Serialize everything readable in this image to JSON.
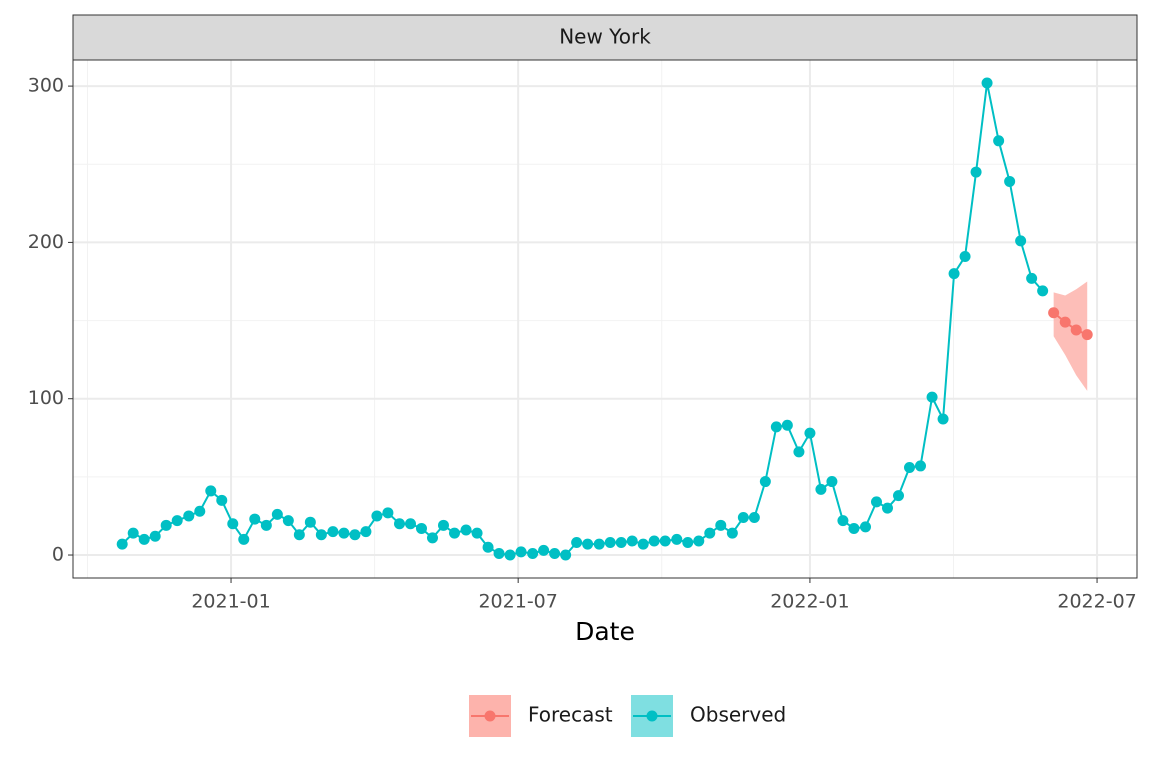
{
  "chart_data": {
    "type": "line",
    "facet": "New York",
    "xlabel": "Date",
    "xlim": [
      2020.727,
      2022.565
    ],
    "ylim": [
      -14.7,
      316.7
    ],
    "xticks": [
      {
        "value": 2021.0,
        "label": "2021-01"
      },
      {
        "value": 2021.496,
        "label": "2021-07"
      },
      {
        "value": 2022.0,
        "label": "2022-01"
      },
      {
        "value": 2022.496,
        "label": "2022-07"
      }
    ],
    "yticks": [
      0,
      100,
      200,
      300
    ],
    "grid": true,
    "legend": "bottom",
    "series": [
      {
        "name": "Forecast",
        "color": "#F8766D",
        "band_color": "#FDB3AC",
        "x": [
          2022.421,
          2022.441,
          2022.46,
          2022.479
        ],
        "values": [
          155,
          149,
          144,
          141
        ],
        "lower": [
          140,
          128,
          115,
          105
        ],
        "upper": [
          168,
          166,
          170,
          175
        ]
      },
      {
        "name": "Observed",
        "color": "#00BFC4",
        "band_color": "#7FDFE1",
        "x": [
          2020.812,
          2020.831,
          2020.85,
          2020.869,
          2020.888,
          2020.907,
          2020.927,
          2020.946,
          2020.965,
          2020.984,
          2021.003,
          2021.022,
          2021.041,
          2021.061,
          2021.08,
          2021.099,
          2021.118,
          2021.137,
          2021.156,
          2021.176,
          2021.195,
          2021.214,
          2021.233,
          2021.252,
          2021.271,
          2021.291,
          2021.31,
          2021.329,
          2021.348,
          2021.367,
          2021.386,
          2021.406,
          2021.425,
          2021.444,
          2021.463,
          2021.482,
          2021.501,
          2021.521,
          2021.54,
          2021.559,
          2021.578,
          2021.597,
          2021.616,
          2021.636,
          2021.655,
          2021.674,
          2021.693,
          2021.712,
          2021.731,
          2021.75,
          2021.77,
          2021.789,
          2021.808,
          2021.827,
          2021.846,
          2021.866,
          2021.885,
          2021.904,
          2021.923,
          2021.942,
          2021.961,
          2021.981,
          2022.0,
          2022.019,
          2022.038,
          2022.057,
          2022.076,
          2022.096,
          2022.115,
          2022.134,
          2022.153,
          2022.172,
          2022.191,
          2022.211,
          2022.23,
          2022.249,
          2022.268,
          2022.287,
          2022.306,
          2022.326,
          2022.345,
          2022.364,
          2022.383,
          2022.402
        ],
        "values": [
          7,
          14,
          10,
          12,
          19,
          22,
          25,
          28,
          41,
          35,
          20,
          10,
          23,
          19,
          26,
          22,
          13,
          21,
          13,
          15,
          14,
          13,
          15,
          25,
          27,
          20,
          20,
          17,
          11,
          19,
          14,
          16,
          14,
          5,
          1,
          0,
          2,
          1,
          3,
          1,
          0,
          8,
          7,
          7,
          8,
          8,
          9,
          7,
          9,
          9,
          10,
          8,
          9,
          14,
          19,
          14,
          24,
          24,
          47,
          82,
          83,
          66,
          78,
          42,
          47,
          22,
          17,
          18,
          34,
          30,
          38,
          56,
          57,
          101,
          87,
          180,
          191,
          245,
          302,
          265,
          239,
          201,
          177,
          169
        ]
      }
    ]
  }
}
